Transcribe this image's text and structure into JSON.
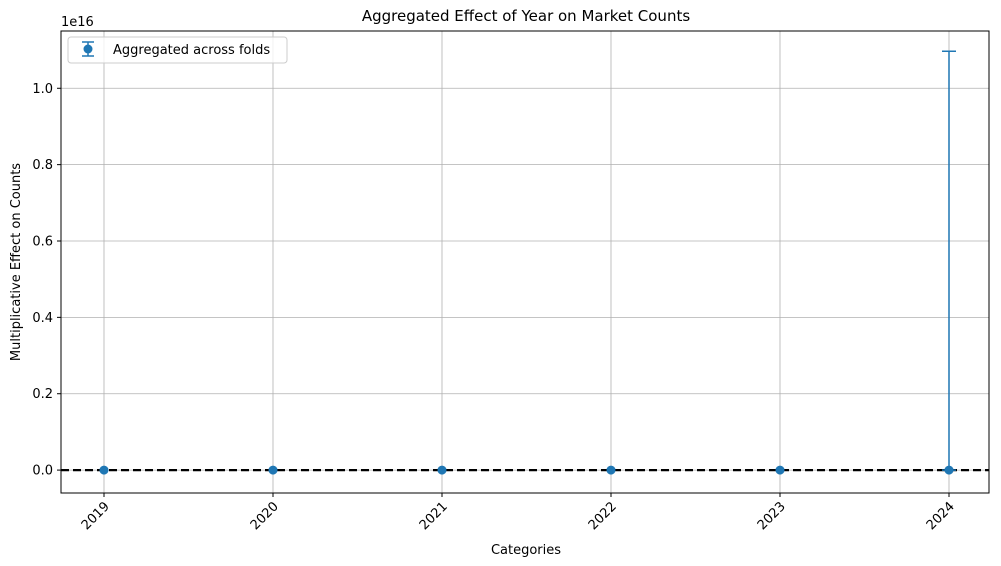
{
  "chart_data": {
    "type": "scatter",
    "title": "Aggregated Effect of Year on Market Counts",
    "xlabel": "Categories",
    "ylabel": "Multiplicative Effect on Counts",
    "y_offset_label": "1e16",
    "categories": [
      "2019",
      "2020",
      "2021",
      "2022",
      "2023",
      "2024"
    ],
    "series": [
      {
        "name": "Aggregated across folds",
        "values": [
          0,
          0,
          0,
          0,
          0,
          0
        ],
        "error_upper": [
          0,
          0,
          0,
          0,
          0,
          1.097e+16
        ],
        "error_lower": [
          0,
          0,
          0,
          0,
          0,
          0
        ],
        "color": "#1f77b4"
      }
    ],
    "reference_line": {
      "y": 0,
      "style": "dashed",
      "color": "#000000"
    },
    "ylim": [
      -600000000000000.0,
      1.15e+16
    ],
    "yticks": [
      0,
      2000000000000000.0,
      4000000000000000.0,
      6000000000000000.0,
      8000000000000000.0,
      1e+16
    ],
    "ytick_labels": [
      "0.0",
      "0.2",
      "0.4",
      "0.6",
      "0.8",
      "1.0"
    ],
    "grid": true,
    "legend_position": "top-left",
    "xtick_rotation": 45
  }
}
